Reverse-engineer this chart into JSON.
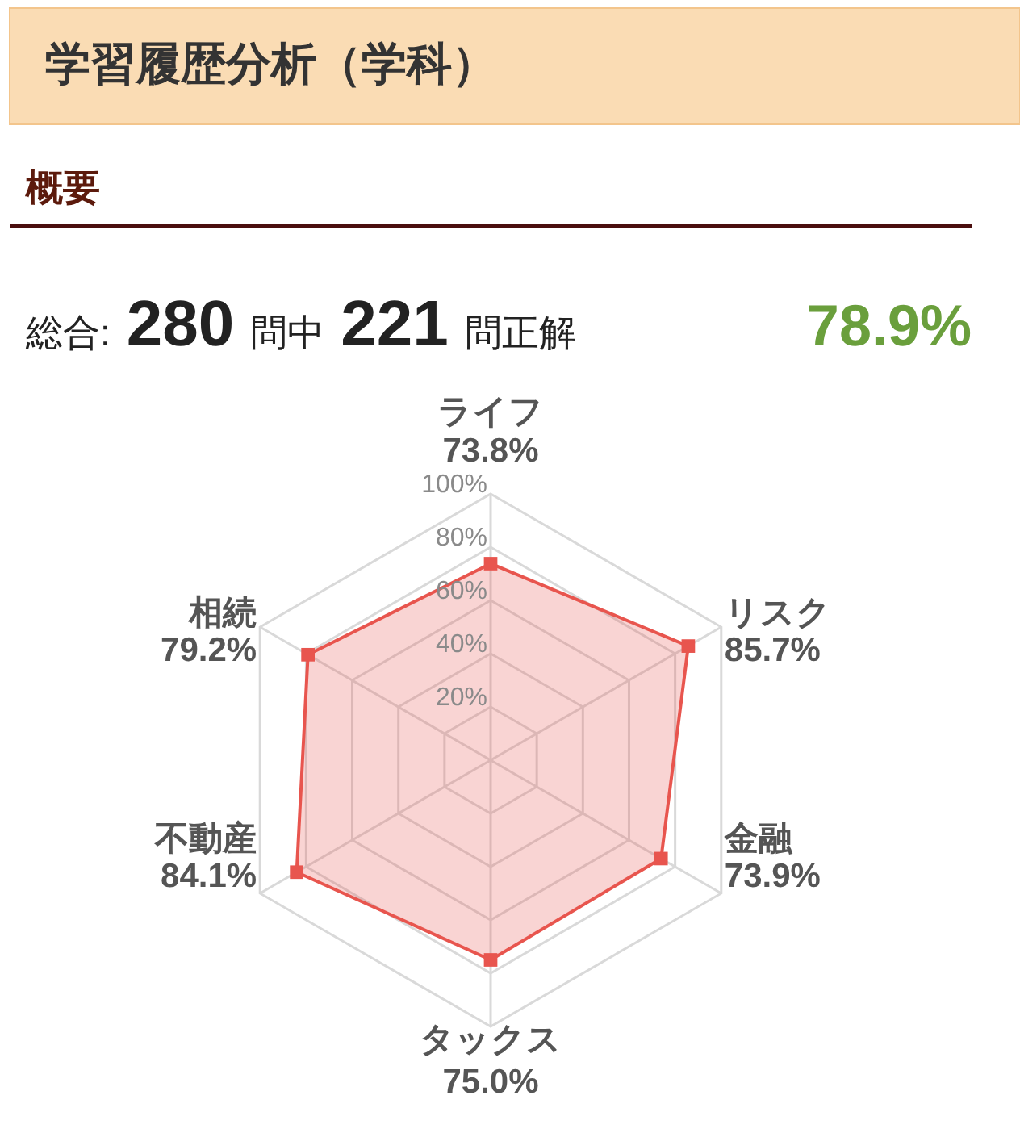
{
  "chart_data": {
    "type": "radar",
    "title": "学習履歴分析（学科）",
    "subtitle": "概要",
    "annotations": [
      "総合:",
      "280",
      "問中",
      "221",
      "問正解",
      "78.9%"
    ],
    "categories": [
      "ライフ",
      "リスク",
      "金融",
      "タックス",
      "不動産",
      "相続"
    ],
    "series": [
      {
        "color": "#e8554e",
        "values": [
          73.8,
          85.7,
          73.9,
          75.0,
          84.1,
          79.2
        ],
        "value_labels": [
          "73.8%",
          "85.7%",
          "73.9%",
          "75.0%",
          "84.1%",
          "79.2%"
        ]
      }
    ],
    "ylim": [
      0,
      100
    ],
    "yticks": [
      {
        "value": 20,
        "label": "20%"
      },
      {
        "value": 40,
        "label": "40%"
      },
      {
        "value": 60,
        "label": "60%"
      },
      {
        "value": 80,
        "label": "80%"
      },
      {
        "value": 100,
        "label": "100%"
      }
    ],
    "grid": true,
    "marker": "square",
    "line_style": "solid"
  }
}
